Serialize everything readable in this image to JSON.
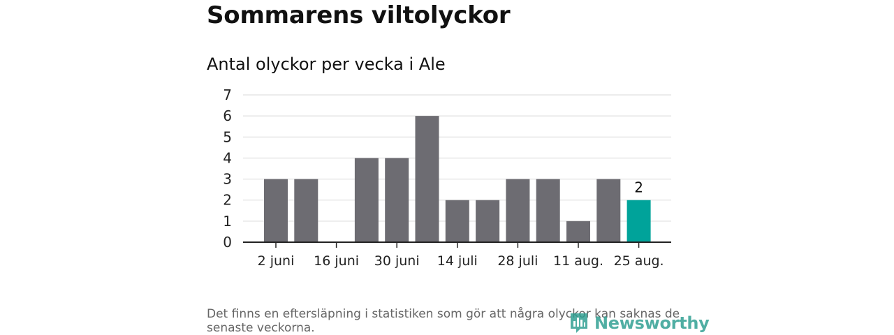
{
  "header": {
    "title": "Sommarens viltolyckor",
    "subtitle": "Antal olyckor per vecka i Ale"
  },
  "footnote": "Det finns en eftersläpning i statistiken som gör att några olyckor kan saknas de senaste veckorna.",
  "logo": {
    "text": "Newsworthy",
    "icon": "newsworthy-bar-chart-icon"
  },
  "colors": {
    "bar": "#6d6c72",
    "highlight": "#00a39a",
    "grid": "#d9d9d9",
    "axis": "#222222",
    "logo": "#2a9d8f"
  },
  "chart_data": {
    "type": "bar",
    "title": "Antal olyckor per vecka i Ale",
    "xlabel": "",
    "ylabel": "",
    "ylim": [
      0,
      7
    ],
    "yticks": [
      0,
      1,
      2,
      3,
      4,
      5,
      6,
      7
    ],
    "grid": true,
    "x_tick_labels": [
      {
        "label": "2 juni",
        "index": 0.5
      },
      {
        "label": "16 juni",
        "index": 2.5
      },
      {
        "label": "30 juni",
        "index": 4.5
      },
      {
        "label": "14 juli",
        "index": 6.5
      },
      {
        "label": "28 juli",
        "index": 8.5
      },
      {
        "label": "11 aug.",
        "index": 10.5
      },
      {
        "label": "25 aug.",
        "index": 12.5
      }
    ],
    "values": [
      3,
      3,
      0,
      4,
      4,
      6,
      2,
      2,
      3,
      3,
      1,
      3,
      2
    ],
    "highlight_index": 12,
    "data_labels": [
      {
        "index": 12,
        "text": "2"
      }
    ]
  }
}
